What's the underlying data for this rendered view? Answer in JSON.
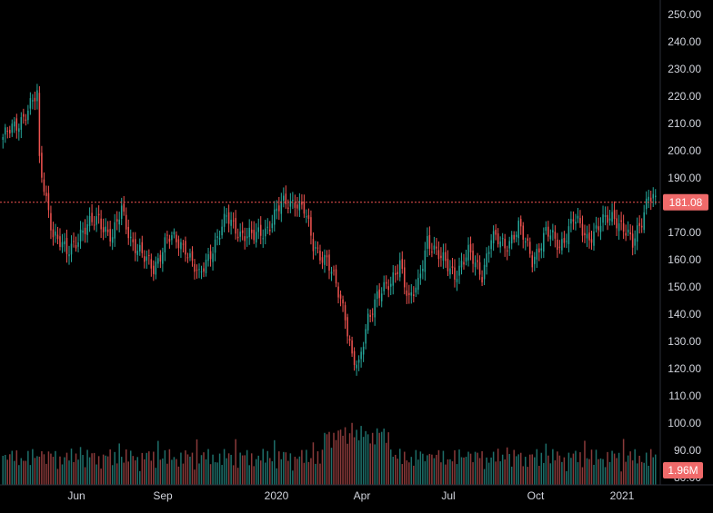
{
  "colors": {
    "background": "#000000",
    "up": "#26a69a",
    "down": "#ef5350",
    "volume_up": "#1e6f6a",
    "volume_down": "#8a3a3a",
    "axis_text": "#d1d4dc",
    "axis_line": "#2a2e39",
    "last_price_line": "#ef5350",
    "last_price_badge": "#f06a6a"
  },
  "chart_data": {
    "type": "candlestick",
    "title": "",
    "xlabel": "",
    "ylabel": "",
    "ylim": [
      80,
      250
    ],
    "grid": false,
    "price_ticks": [
      "250.00",
      "240.00",
      "230.00",
      "220.00",
      "210.00",
      "200.00",
      "190.00",
      "180.00",
      "170.00",
      "160.00",
      "150.00",
      "140.00",
      "130.00",
      "120.00",
      "110.00",
      "100.00",
      "90.00",
      "80.00"
    ],
    "date_ticks": [
      "Jun",
      "Sep",
      "2020",
      "Apr",
      "Jul",
      "Oct",
      "2021"
    ],
    "last_price": "181.08",
    "last_price_value": 181.08,
    "last_volume": "1.96M",
    "price_path": [
      {
        "t": 0,
        "v": 205
      },
      {
        "t": 6,
        "v": 209
      },
      {
        "t": 12,
        "v": 217
      },
      {
        "t": 15,
        "v": 220
      },
      {
        "t": 16,
        "v": 195
      },
      {
        "t": 22,
        "v": 170
      },
      {
        "t": 28,
        "v": 162
      },
      {
        "t": 34,
        "v": 170
      },
      {
        "t": 42,
        "v": 175
      },
      {
        "t": 48,
        "v": 168
      },
      {
        "t": 52,
        "v": 178
      },
      {
        "t": 56,
        "v": 168
      },
      {
        "t": 62,
        "v": 160
      },
      {
        "t": 66,
        "v": 157
      },
      {
        "t": 72,
        "v": 168
      },
      {
        "t": 80,
        "v": 165
      },
      {
        "t": 86,
        "v": 153
      },
      {
        "t": 92,
        "v": 165
      },
      {
        "t": 98,
        "v": 175
      },
      {
        "t": 104,
        "v": 170
      },
      {
        "t": 110,
        "v": 168
      },
      {
        "t": 116,
        "v": 172
      },
      {
        "t": 122,
        "v": 180
      },
      {
        "t": 128,
        "v": 182
      },
      {
        "t": 132,
        "v": 178
      },
      {
        "t": 136,
        "v": 165
      },
      {
        "t": 142,
        "v": 160
      },
      {
        "t": 146,
        "v": 150
      },
      {
        "t": 150,
        "v": 140
      },
      {
        "t": 153,
        "v": 125
      },
      {
        "t": 156,
        "v": 120
      },
      {
        "t": 160,
        "v": 138
      },
      {
        "t": 164,
        "v": 148
      },
      {
        "t": 170,
        "v": 150
      },
      {
        "t": 174,
        "v": 160
      },
      {
        "t": 178,
        "v": 145
      },
      {
        "t": 182,
        "v": 150
      },
      {
        "t": 186,
        "v": 168
      },
      {
        "t": 192,
        "v": 160
      },
      {
        "t": 198,
        "v": 155
      },
      {
        "t": 204,
        "v": 162
      },
      {
        "t": 210,
        "v": 155
      },
      {
        "t": 214,
        "v": 168
      },
      {
        "t": 220,
        "v": 165
      },
      {
        "t": 226,
        "v": 172
      },
      {
        "t": 232,
        "v": 160
      },
      {
        "t": 238,
        "v": 170
      },
      {
        "t": 244,
        "v": 165
      },
      {
        "t": 250,
        "v": 175
      },
      {
        "t": 256,
        "v": 168
      },
      {
        "t": 262,
        "v": 173
      },
      {
        "t": 268,
        "v": 176
      },
      {
        "t": 272,
        "v": 172
      },
      {
        "t": 276,
        "v": 165
      },
      {
        "t": 280,
        "v": 175
      },
      {
        "t": 283,
        "v": 185
      },
      {
        "t": 286,
        "v": 181
      }
    ]
  }
}
